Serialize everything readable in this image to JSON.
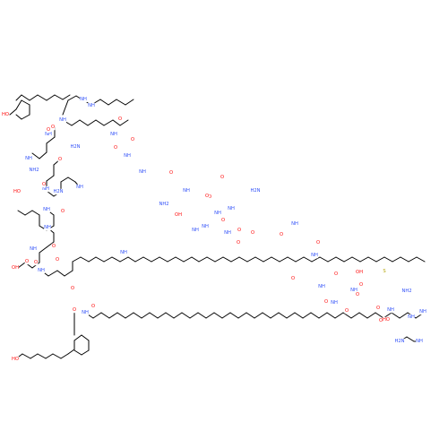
{
  "molecule": {
    "colors": {
      "bond": "#000000",
      "O": "#ff0d0d",
      "N": "#3050f8",
      "S": "#b2a200",
      "C": "#000000"
    },
    "labels": [
      {
        "id": "l1",
        "text": "NH",
        "el": "N"
      },
      {
        "id": "l2",
        "text": "NH",
        "el": "N"
      },
      {
        "id": "l3",
        "text": "H2N",
        "el": "N"
      },
      {
        "id": "l4",
        "text": "HO",
        "el": "O"
      },
      {
        "id": "l5",
        "text": "O",
        "el": "O"
      },
      {
        "id": "l6",
        "text": "NH",
        "el": "N"
      },
      {
        "id": "l7",
        "text": "O",
        "el": "O"
      },
      {
        "id": "l8",
        "text": "NH",
        "el": "N"
      },
      {
        "id": "l9",
        "text": "HO",
        "el": "O"
      },
      {
        "id": "l10",
        "text": "NH",
        "el": "N"
      },
      {
        "id": "l11",
        "text": "O",
        "el": "O"
      },
      {
        "id": "l12",
        "text": "NH",
        "el": "N"
      },
      {
        "id": "l13",
        "text": "O",
        "el": "O"
      },
      {
        "id": "l14",
        "text": "NH2",
        "el": "N"
      },
      {
        "id": "l15",
        "text": "NH",
        "el": "N"
      },
      {
        "id": "l16",
        "text": "O",
        "el": "O"
      },
      {
        "id": "l17",
        "text": "NH",
        "el": "N"
      },
      {
        "id": "l18",
        "text": "O",
        "el": "O"
      },
      {
        "id": "l19",
        "text": "NH",
        "el": "N"
      },
      {
        "id": "l20",
        "text": "O",
        "el": "O"
      },
      {
        "id": "l21",
        "text": "NH",
        "el": "N"
      },
      {
        "id": "l22",
        "text": "O",
        "el": "O"
      },
      {
        "id": "l23",
        "text": "NH",
        "el": "N"
      },
      {
        "id": "l24",
        "text": "O",
        "el": "O"
      },
      {
        "id": "l25",
        "text": "NH",
        "el": "N"
      },
      {
        "id": "l26",
        "text": "O",
        "el": "O"
      },
      {
        "id": "l27",
        "text": "NH",
        "el": "N"
      },
      {
        "id": "l28",
        "text": "H2N",
        "el": "N"
      },
      {
        "id": "l29",
        "text": "NH",
        "el": "N"
      },
      {
        "id": "l30",
        "text": "O",
        "el": "O"
      },
      {
        "id": "l31",
        "text": "NH2",
        "el": "N"
      },
      {
        "id": "l32",
        "text": "OH",
        "el": "O"
      },
      {
        "id": "l33",
        "text": "O",
        "el": "O"
      },
      {
        "id": "l34",
        "text": "NH",
        "el": "N"
      },
      {
        "id": "l35",
        "text": "O",
        "el": "O"
      },
      {
        "id": "l36",
        "text": "NH",
        "el": "N"
      },
      {
        "id": "l37",
        "text": "O",
        "el": "O"
      },
      {
        "id": "l38",
        "text": "NH",
        "el": "N"
      },
      {
        "id": "l39",
        "text": "O",
        "el": "O"
      },
      {
        "id": "l40",
        "text": "NH",
        "el": "N"
      },
      {
        "id": "l41",
        "text": "O",
        "el": "O"
      },
      {
        "id": "l42",
        "text": "OH",
        "el": "O"
      },
      {
        "id": "l43",
        "text": "O",
        "el": "O"
      },
      {
        "id": "l44",
        "text": "NH",
        "el": "N"
      },
      {
        "id": "l45",
        "text": "O",
        "el": "O"
      },
      {
        "id": "l46",
        "text": "NH",
        "el": "N"
      },
      {
        "id": "l47",
        "text": "O",
        "el": "O"
      },
      {
        "id": "l48",
        "text": "O",
        "el": "O"
      },
      {
        "id": "l49",
        "text": "O",
        "el": "O"
      },
      {
        "id": "l50",
        "text": "NH",
        "el": "N"
      },
      {
        "id": "l51",
        "text": "O",
        "el": "O"
      },
      {
        "id": "l52",
        "text": "NH",
        "el": "N"
      },
      {
        "id": "l53",
        "text": "H2N",
        "el": "N"
      },
      {
        "id": "l54",
        "text": "O",
        "el": "O"
      },
      {
        "id": "l55",
        "text": "NH",
        "el": "N"
      },
      {
        "id": "l56",
        "text": "O",
        "el": "O"
      },
      {
        "id": "l57",
        "text": "OH",
        "el": "O"
      },
      {
        "id": "l58",
        "text": "NH",
        "el": "N"
      },
      {
        "id": "l59",
        "text": "O",
        "el": "O"
      },
      {
        "id": "l60",
        "text": "NH",
        "el": "N"
      },
      {
        "id": "l61",
        "text": "O",
        "el": "O"
      },
      {
        "id": "l62",
        "text": "HO",
        "el": "O"
      },
      {
        "id": "l63",
        "text": "O",
        "el": "O"
      },
      {
        "id": "l64",
        "text": "NH",
        "el": "N"
      },
      {
        "id": "l65",
        "text": "O",
        "el": "O"
      },
      {
        "id": "l66",
        "text": "NH",
        "el": "N"
      },
      {
        "id": "l67",
        "text": "O",
        "el": "O"
      },
      {
        "id": "l68",
        "text": "NH2",
        "el": "N"
      },
      {
        "id": "l69",
        "text": "OH",
        "el": "O"
      },
      {
        "id": "l70",
        "text": "NH",
        "el": "N"
      },
      {
        "id": "l71",
        "text": "O",
        "el": "O"
      },
      {
        "id": "l72",
        "text": "O",
        "el": "O"
      },
      {
        "id": "l73",
        "text": "O",
        "el": "O"
      },
      {
        "id": "l74",
        "text": "S",
        "el": "S"
      },
      {
        "id": "l75",
        "text": "HO",
        "el": "O"
      },
      {
        "id": "l76",
        "text": "NH",
        "el": "N"
      },
      {
        "id": "l77",
        "text": "NH",
        "el": "N"
      },
      {
        "id": "l78",
        "text": "H2N",
        "el": "N"
      },
      {
        "id": "l79",
        "text": "NH",
        "el": "N"
      }
    ]
  }
}
